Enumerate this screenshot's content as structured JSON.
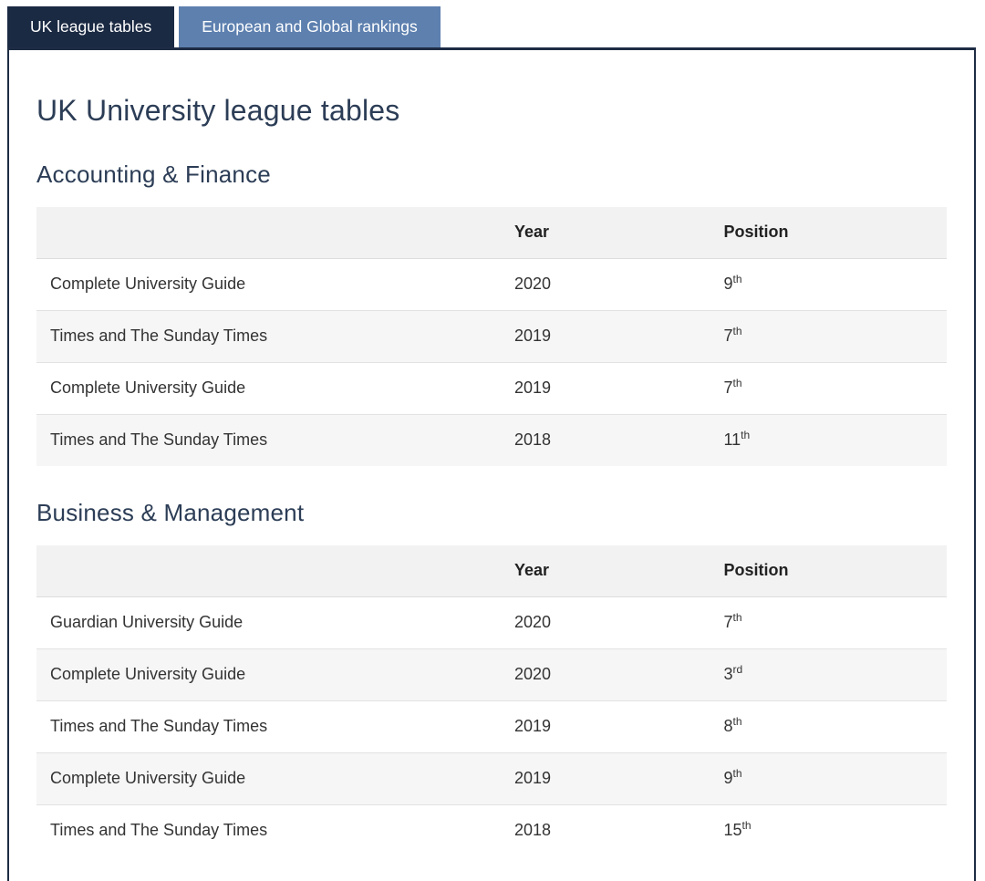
{
  "tab_bar": {
    "tabs": [
      {
        "label": "UK league tables",
        "active": true
      },
      {
        "label": "European and Global rankings",
        "active": false
      }
    ]
  },
  "page_title": "UK University league tables",
  "sections": [
    {
      "heading": "Accounting & Finance",
      "columns": [
        "",
        "Year",
        "Position"
      ],
      "rows": [
        {
          "source": "Complete University Guide",
          "year": "2020",
          "position": "9",
          "suffix": "th"
        },
        {
          "source": "Times and The Sunday Times",
          "year": "2019",
          "position": "7",
          "suffix": "th"
        },
        {
          "source": "Complete University Guide",
          "year": "2019",
          "position": "7",
          "suffix": "th"
        },
        {
          "source": "Times and The Sunday Times",
          "year": "2018",
          "position": "11",
          "suffix": "th"
        }
      ]
    },
    {
      "heading": "Business & Management",
      "columns": [
        "",
        "Year",
        "Position"
      ],
      "rows": [
        {
          "source": "Guardian University Guide",
          "year": "2020",
          "position": "7",
          "suffix": "th"
        },
        {
          "source": "Complete University Guide",
          "year": "2020",
          "position": "3",
          "suffix": "rd"
        },
        {
          "source": "Times and The Sunday Times",
          "year": "2019",
          "position": "8",
          "suffix": "th"
        },
        {
          "source": "Complete University Guide",
          "year": "2019",
          "position": "9",
          "suffix": "th"
        },
        {
          "source": "Times and The Sunday Times",
          "year": "2018",
          "position": "15",
          "suffix": "th"
        }
      ]
    }
  ],
  "colors": {
    "active_tab_bg": "#1b2a43",
    "inactive_tab_bg": "#5d80af",
    "panel_border": "#1e2c44",
    "heading_text": "#2c3d56",
    "table_header_bg": "#f2f2f2",
    "row_alt_bg": "#f6f6f6",
    "body_text": "#333333"
  }
}
